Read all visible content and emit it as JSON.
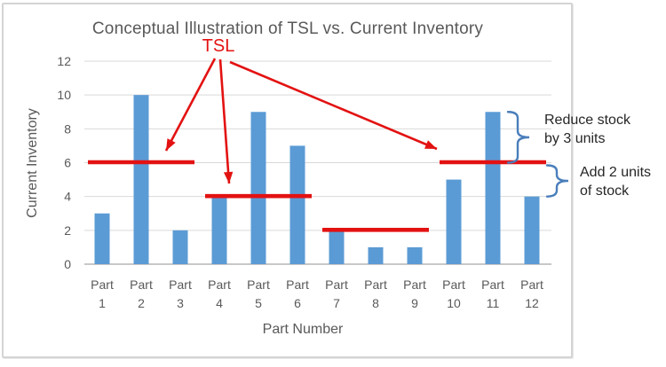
{
  "chart_data": {
    "type": "bar",
    "title": "Conceptual Illustration of TSL vs. Current Inventory",
    "xlabel": "Part Number",
    "ylabel": "Current Inventory",
    "categories": [
      "Part 1",
      "Part 2",
      "Part 3",
      "Part 4",
      "Part 5",
      "Part 6",
      "Part 7",
      "Part 8",
      "Part 9",
      "Part 10",
      "Part 11",
      "Part 12"
    ],
    "values": [
      3,
      10,
      2,
      4,
      9,
      7,
      2,
      1,
      1,
      5,
      9,
      4
    ],
    "ylim": [
      0,
      12
    ],
    "y_ticks": [
      0,
      2,
      4,
      6,
      8,
      10,
      12
    ],
    "grid": "horizontal",
    "legend": "none",
    "bar_color": "#5B9BD5",
    "gridline_color": "#D9D9D9",
    "axis_line_color": "#A6A6A6",
    "text_color": "#595959",
    "annotation_text_color": "#262626",
    "brace_color": "#4A7EBB",
    "tsl": {
      "label": "TSL",
      "color": "#E31212",
      "segments": [
        {
          "parts": [
            1,
            3
          ],
          "level": 6
        },
        {
          "parts": [
            4,
            6
          ],
          "level": 4
        },
        {
          "parts": [
            7,
            9
          ],
          "level": 2
        },
        {
          "parts": [
            10,
            12
          ],
          "level": 6
        }
      ],
      "arrows_point_to_segments": [
        1,
        2,
        4
      ]
    },
    "annotations": [
      {
        "line1": "Reduce stock",
        "line2": "by 3 units",
        "part": 11,
        "from_level": 9,
        "to_level": 6
      },
      {
        "line1": "Add 2 units",
        "line2": "of stock",
        "part": 12,
        "from_level": 6,
        "to_level": 4
      }
    ]
  }
}
